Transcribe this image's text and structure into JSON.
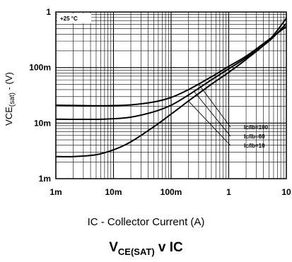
{
  "chart_data": {
    "type": "line",
    "title": "",
    "caption": {
      "main": "V",
      "sub": "CE(SAT)",
      "rest": " v IC"
    },
    "xlabel": "IC - Collector Current (A)",
    "ylabel": {
      "main": "VCE",
      "sub": "(sat)",
      "rest": " - (V)"
    },
    "x_scale": "log",
    "y_scale": "log",
    "xlim": [
      0.001,
      10
    ],
    "ylim": [
      0.001,
      1
    ],
    "x_ticks": [
      {
        "value": 0.001,
        "label": "1m"
      },
      {
        "value": 0.01,
        "label": "10m"
      },
      {
        "value": 0.1,
        "label": "100m"
      },
      {
        "value": 1,
        "label": "1"
      },
      {
        "value": 10,
        "label": "10"
      }
    ],
    "y_ticks": [
      {
        "value": 0.001,
        "label": "1m"
      },
      {
        "value": 0.01,
        "label": "10m"
      },
      {
        "value": 0.1,
        "label": "100m"
      },
      {
        "value": 1,
        "label": "1"
      }
    ],
    "grid": true,
    "annotation": "+25 °C",
    "legend_position": "right",
    "series": [
      {
        "name": "Ic/Ib=100",
        "x": [
          0.001,
          0.002,
          0.005,
          0.01,
          0.02,
          0.05,
          0.1,
          0.2,
          0.5,
          1,
          2,
          5,
          10
        ],
        "y": [
          0.021,
          0.0208,
          0.0205,
          0.0207,
          0.0213,
          0.024,
          0.029,
          0.04,
          0.068,
          0.105,
          0.16,
          0.32,
          0.55
        ]
      },
      {
        "name": "Ic/Ib=60",
        "x": [
          0.001,
          0.002,
          0.005,
          0.01,
          0.02,
          0.05,
          0.1,
          0.2,
          0.5,
          1,
          2,
          5,
          10
        ],
        "y": [
          0.0118,
          0.0117,
          0.0117,
          0.012,
          0.0128,
          0.016,
          0.021,
          0.032,
          0.06,
          0.095,
          0.15,
          0.3,
          0.62
        ]
      },
      {
        "name": "Ic/Ib=10",
        "x": [
          0.001,
          0.002,
          0.005,
          0.01,
          0.02,
          0.05,
          0.1,
          0.2,
          0.5,
          1,
          2,
          5,
          10
        ],
        "y": [
          0.0025,
          0.0025,
          0.0027,
          0.0033,
          0.0046,
          0.0086,
          0.0145,
          0.025,
          0.05,
          0.082,
          0.14,
          0.31,
          0.77
        ]
      }
    ]
  }
}
